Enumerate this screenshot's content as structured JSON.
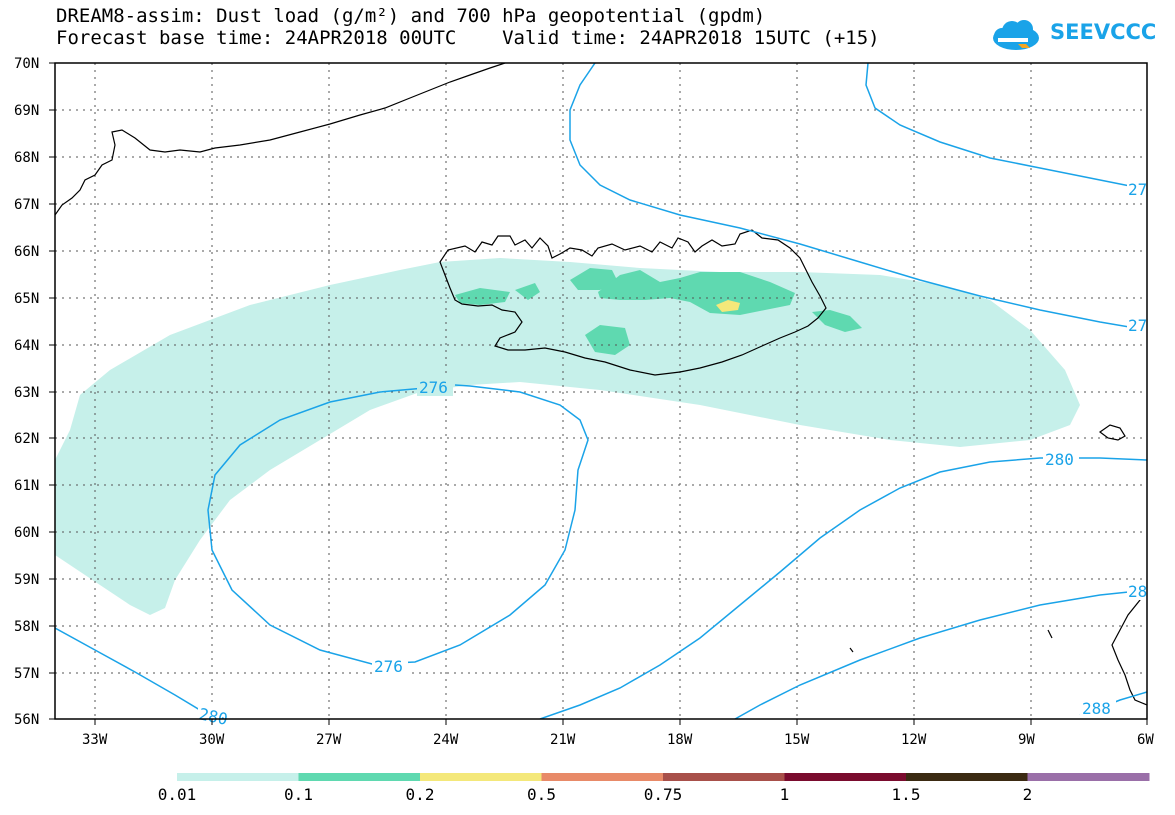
{
  "header": {
    "title_line1": "DREAM8-assim: Dust load (g/m²) and 700 hPa geopotential (gpdm)",
    "title_line2": "Forecast base time: 24APR2018 00UTC    Valid time: 24APR2018 15UTC (+15)",
    "logo_text": "SEEVCCC"
  },
  "map": {
    "lat_labels": [
      "70N",
      "69N",
      "68N",
      "67N",
      "66N",
      "65N",
      "64N",
      "63N",
      "62N",
      "61N",
      "60N",
      "59N",
      "58N",
      "57N",
      "56N"
    ],
    "lon_labels": [
      "33W",
      "30W",
      "27W",
      "24W",
      "21W",
      "18W",
      "15W",
      "12W",
      "9W",
      "6W"
    ],
    "contour_labels": [
      "276",
      "276",
      "280",
      "280",
      "28",
      "288",
      "27",
      "27"
    ],
    "contour_color": "#1aa3e8",
    "coastline_color": "#000000"
  },
  "colorbar": {
    "ticks": [
      "0.01",
      "0.1",
      "0.2",
      "0.5",
      "0.75",
      "1",
      "1.5",
      "2"
    ],
    "colors": [
      "#c6f0ea",
      "#5fd9b0",
      "#f4e87a",
      "#e88a68",
      "#a8504a",
      "#7a0b2e",
      "#3b2a12",
      "#9a6fa8"
    ]
  }
}
